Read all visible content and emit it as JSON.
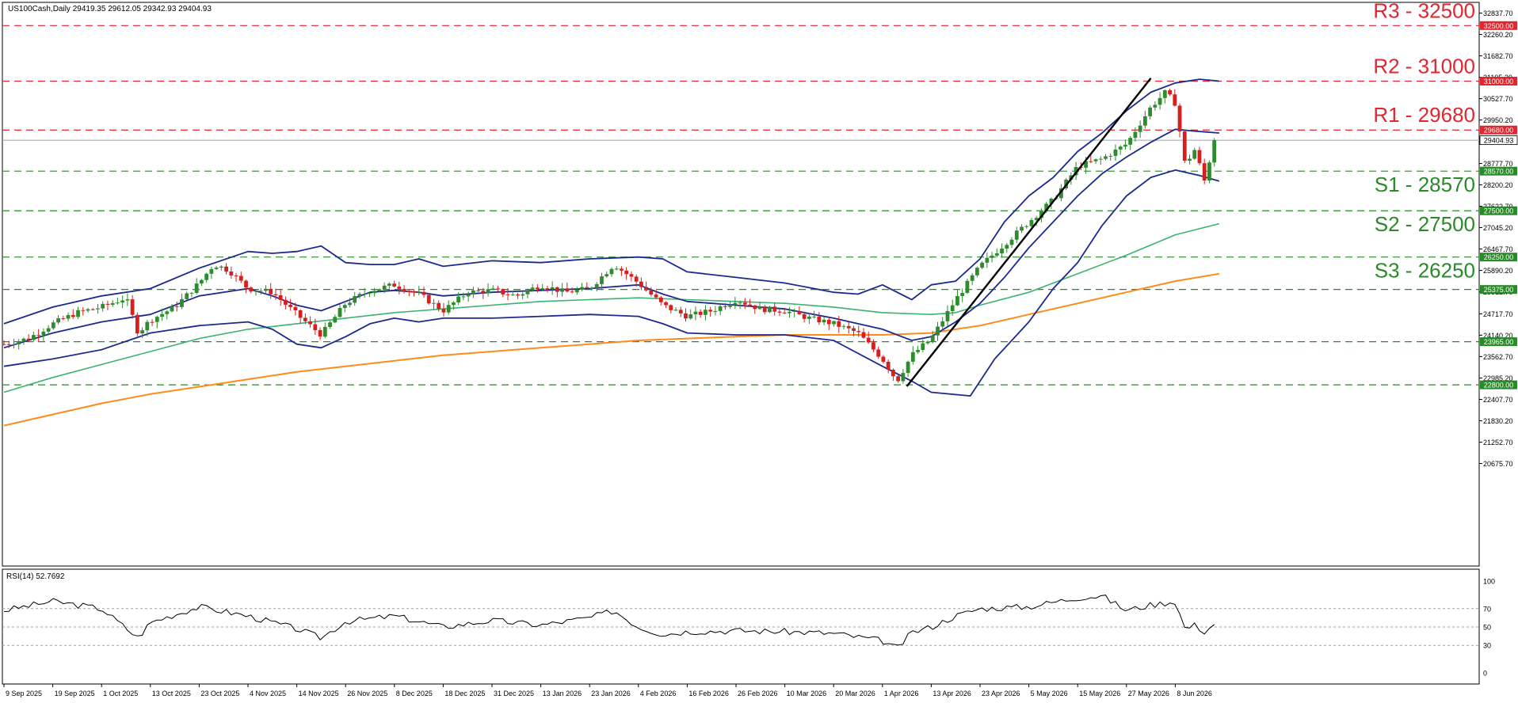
{
  "chart_data": {
    "type": "candlestick",
    "symbol_header": "US100Cash,Daily  29419.35 29612.05 29342.93 29404.93",
    "rsi_header": "RSI(14) 52.7692",
    "current_price": 29404.93,
    "current_price_label": "29404.93",
    "ylim": [
      20675.7,
      33000
    ],
    "y_ticks": [
      {
        "value": 32837.7,
        "label": "32837.70"
      },
      {
        "value": 32260.2,
        "label": "32260.20"
      },
      {
        "value": 31682.7,
        "label": "31682.70"
      },
      {
        "value": 31105.2,
        "label": "31105.20"
      },
      {
        "value": 30527.7,
        "label": "30527.70"
      },
      {
        "value": 29950.2,
        "label": "29950.20"
      },
      {
        "value": 29372.7,
        "label": "29372.70"
      },
      {
        "value": 28777.7,
        "label": "28777.70"
      },
      {
        "value": 28200.2,
        "label": "28200.20"
      },
      {
        "value": 27622.7,
        "label": "27622.70"
      },
      {
        "value": 27045.2,
        "label": "27045.20"
      },
      {
        "value": 26467.7,
        "label": "26467.70"
      },
      {
        "value": 25890.2,
        "label": "25890.20"
      },
      {
        "value": 25312.7,
        "label": "25312.70"
      },
      {
        "value": 24717.7,
        "label": "24717.70"
      },
      {
        "value": 24140.2,
        "label": "24140.20"
      },
      {
        "value": 23562.7,
        "label": "23562.70"
      },
      {
        "value": 22985.2,
        "label": "22985.20"
      },
      {
        "value": 22407.7,
        "label": "22407.70"
      },
      {
        "value": 21830.2,
        "label": "21830.20"
      },
      {
        "value": 21252.7,
        "label": "21252.70"
      },
      {
        "value": 20675.7,
        "label": "20675.70"
      }
    ],
    "x_labels": [
      "9 Sep 2025",
      "19 Sep 2025",
      "1 Oct 2025",
      "13 Oct 2025",
      "23 Oct 2025",
      "4 Nov 2025",
      "14 Nov 2025",
      "26 Nov 2025",
      "8 Dec 2025",
      "18 Dec 2025",
      "31 Dec 2025",
      "13 Jan 2026",
      "23 Jan 2026",
      "4 Feb 2026",
      "16 Feb 2026",
      "26 Feb 2026",
      "10 Mar 2026",
      "20 Mar 2026",
      "1 Apr 2026",
      "13 Apr 2026",
      "23 Apr 2026",
      "5 May 2026",
      "15 May 2026",
      "27 May 2026",
      "8 Jun 2026"
    ],
    "levels": [
      {
        "name": "R3",
        "value": 32500,
        "label": "R3 - 32500",
        "tag": "32500.00",
        "kind": "resistance"
      },
      {
        "name": "R2",
        "value": 31000,
        "label": "R2 - 31000",
        "tag": "31000.00",
        "kind": "resistance"
      },
      {
        "name": "R1",
        "value": 29680,
        "label": "R1 - 29680",
        "tag": "29680.00",
        "kind": "resistance"
      },
      {
        "name": "S1",
        "value": 28570,
        "label": "S1 - 28570",
        "tag": "28570.00",
        "kind": "support"
      },
      {
        "name": "S2",
        "value": 27500,
        "label": "S2 - 27500",
        "tag": "27500.00",
        "kind": "support"
      },
      {
        "name": "S3",
        "value": 26250,
        "label": "S3 - 26250",
        "tag": "26250.00",
        "kind": "support"
      },
      {
        "name": "",
        "value": 25375,
        "label": "",
        "tag": "25375.00",
        "kind": "support"
      },
      {
        "name": "",
        "value": 23965,
        "label": "",
        "tag": "23965.00",
        "kind": "support"
      },
      {
        "name": "",
        "value": 22800,
        "label": "",
        "tag": "22800.00",
        "kind": "support"
      }
    ],
    "rsi_ticks": [
      {
        "value": 100,
        "label": "100"
      },
      {
        "value": 70,
        "label": "70"
      },
      {
        "value": 50,
        "label": "50"
      },
      {
        "value": 30,
        "label": "30"
      },
      {
        "value": 0,
        "label": "0"
      }
    ],
    "rsi_levels": [
      70,
      50,
      30
    ],
    "trendline": {
      "start": [
        18.5,
        22760
      ],
      "end": [
        23.5,
        31080
      ]
    },
    "close_path": [
      [
        0,
        23900
      ],
      [
        0.5,
        24050
      ],
      [
        1,
        24450
      ],
      [
        1.5,
        24750
      ],
      [
        2,
        24900
      ],
      [
        2.5,
        25150
      ],
      [
        2.75,
        24200
      ],
      [
        3,
        24550
      ],
      [
        3.5,
        24900
      ],
      [
        4,
        25550
      ],
      [
        4.3,
        26050
      ],
      [
        4.6,
        25900
      ],
      [
        5,
        25400
      ],
      [
        5.5,
        25300
      ],
      [
        6,
        24700
      ],
      [
        6.5,
        24150
      ],
      [
        7,
        25000
      ],
      [
        7.5,
        25350
      ],
      [
        8,
        25500
      ],
      [
        8.5,
        25250
      ],
      [
        9,
        24800
      ],
      [
        9.5,
        25300
      ],
      [
        10,
        25350
      ],
      [
        10.5,
        25200
      ],
      [
        11,
        25500
      ],
      [
        11.5,
        25300
      ],
      [
        12,
        25400
      ],
      [
        12.5,
        26050
      ],
      [
        13,
        25550
      ],
      [
        13.5,
        24950
      ],
      [
        14,
        24650
      ],
      [
        14.5,
        24800
      ],
      [
        15,
        25100
      ],
      [
        15.5,
        24850
      ],
      [
        16,
        24800
      ],
      [
        16.5,
        24600
      ],
      [
        17,
        24450
      ],
      [
        17.5,
        24200
      ],
      [
        18,
        23500
      ],
      [
        18.3,
        22900
      ],
      [
        18.6,
        23600
      ],
      [
        19,
        24050
      ],
      [
        19.5,
        25100
      ],
      [
        20,
        26000
      ],
      [
        20.5,
        26600
      ],
      [
        21,
        27200
      ],
      [
        21.5,
        27800
      ],
      [
        22,
        28700
      ],
      [
        22.5,
        28900
      ],
      [
        23,
        29300
      ],
      [
        23.5,
        30300
      ],
      [
        23.8,
        30700
      ],
      [
        24,
        30400
      ],
      [
        24.2,
        28750
      ],
      [
        24.4,
        29150
      ],
      [
        24.6,
        28300
      ],
      [
        24.8,
        29404.93
      ]
    ],
    "bb_upper_path": [
      [
        0,
        24450
      ],
      [
        1,
        24900
      ],
      [
        2,
        25200
      ],
      [
        3,
        25400
      ],
      [
        4,
        25950
      ],
      [
        5,
        26400
      ],
      [
        5.5,
        26350
      ],
      [
        6,
        26400
      ],
      [
        6.5,
        26550
      ],
      [
        7,
        26100
      ],
      [
        7.5,
        26050
      ],
      [
        8,
        26050
      ],
      [
        8.5,
        26200
      ],
      [
        9,
        26000
      ],
      [
        10,
        26150
      ],
      [
        11,
        26100
      ],
      [
        12,
        26200
      ],
      [
        13,
        26250
      ],
      [
        13.5,
        26200
      ],
      [
        14,
        25850
      ],
      [
        15,
        25700
      ],
      [
        16,
        25550
      ],
      [
        17,
        25300
      ],
      [
        17.5,
        25250
      ],
      [
        18,
        25500
      ],
      [
        18.6,
        25100
      ],
      [
        19,
        25500
      ],
      [
        19.5,
        25600
      ],
      [
        20,
        26200
      ],
      [
        20.5,
        27200
      ],
      [
        21,
        27900
      ],
      [
        21.5,
        28400
      ],
      [
        22,
        29100
      ],
      [
        22.5,
        29600
      ],
      [
        23,
        30200
      ],
      [
        23.5,
        30700
      ],
      [
        24,
        30950
      ],
      [
        24.5,
        31050
      ],
      [
        24.9,
        31000
      ]
    ],
    "bb_middle_path": [
      [
        0,
        23800
      ],
      [
        1,
        24200
      ],
      [
        2,
        24500
      ],
      [
        3,
        24700
      ],
      [
        4,
        25200
      ],
      [
        5,
        25400
      ],
      [
        5.5,
        25200
      ],
      [
        6,
        24950
      ],
      [
        6.5,
        24800
      ],
      [
        7,
        25050
      ],
      [
        7.5,
        25300
      ],
      [
        8,
        25350
      ],
      [
        8.5,
        25300
      ],
      [
        9,
        25200
      ],
      [
        10,
        25300
      ],
      [
        11,
        25350
      ],
      [
        12,
        25400
      ],
      [
        13,
        25500
      ],
      [
        13.5,
        25250
      ],
      [
        14,
        25050
      ],
      [
        15,
        24950
      ],
      [
        16,
        24850
      ],
      [
        17,
        24600
      ],
      [
        18,
        24300
      ],
      [
        18.6,
        24000
      ],
      [
        19,
        24100
      ],
      [
        19.5,
        24500
      ],
      [
        20,
        25000
      ],
      [
        20.5,
        25700
      ],
      [
        21,
        26500
      ],
      [
        21.5,
        27200
      ],
      [
        22,
        27900
      ],
      [
        22.5,
        28500
      ],
      [
        23,
        28950
      ],
      [
        23.5,
        29350
      ],
      [
        24,
        29700
      ],
      [
        24.4,
        29650
      ],
      [
        24.9,
        29600
      ]
    ],
    "bb_lower_path": [
      [
        0,
        23300
      ],
      [
        1,
        23500
      ],
      [
        2,
        23750
      ],
      [
        3,
        24200
      ],
      [
        4,
        24400
      ],
      [
        5,
        24500
      ],
      [
        5.5,
        24300
      ],
      [
        6,
        23900
      ],
      [
        6.5,
        23800
      ],
      [
        7,
        24100
      ],
      [
        7.5,
        24450
      ],
      [
        8,
        24600
      ],
      [
        8.5,
        24500
      ],
      [
        9,
        24600
      ],
      [
        10,
        24600
      ],
      [
        11,
        24650
      ],
      [
        12,
        24700
      ],
      [
        13,
        24650
      ],
      [
        13.5,
        24450
      ],
      [
        14,
        24200
      ],
      [
        15,
        24150
      ],
      [
        16,
        24150
      ],
      [
        17,
        24000
      ],
      [
        18,
        23300
      ],
      [
        18.6,
        22900
      ],
      [
        19,
        22600
      ],
      [
        19.8,
        22500
      ],
      [
        20.3,
        23500
      ],
      [
        21,
        24500
      ],
      [
        21.5,
        25400
      ],
      [
        22,
        26100
      ],
      [
        22.5,
        27100
      ],
      [
        23,
        27900
      ],
      [
        23.5,
        28400
      ],
      [
        24,
        28600
      ],
      [
        24.5,
        28450
      ],
      [
        24.9,
        28300
      ]
    ],
    "ma_green_path": [
      [
        0,
        22600
      ],
      [
        1,
        23000
      ],
      [
        2,
        23350
      ],
      [
        3,
        23700
      ],
      [
        4,
        24050
      ],
      [
        5,
        24300
      ],
      [
        6,
        24450
      ],
      [
        7,
        24600
      ],
      [
        8,
        24750
      ],
      [
        9,
        24850
      ],
      [
        10,
        24950
      ],
      [
        11,
        25050
      ],
      [
        12,
        25100
      ],
      [
        13,
        25150
      ],
      [
        14,
        25100
      ],
      [
        15,
        25050
      ],
      [
        16,
        25000
      ],
      [
        17,
        24900
      ],
      [
        18,
        24750
      ],
      [
        19,
        24700
      ],
      [
        19.5,
        24750
      ],
      [
        20,
        24950
      ],
      [
        21,
        25300
      ],
      [
        22,
        25800
      ],
      [
        23,
        26300
      ],
      [
        24,
        26850
      ],
      [
        24.9,
        27150
      ]
    ],
    "ma_orange_path": [
      [
        0,
        21700
      ],
      [
        1,
        22000
      ],
      [
        2,
        22300
      ],
      [
        3,
        22550
      ],
      [
        4,
        22750
      ],
      [
        5,
        22950
      ],
      [
        6,
        23150
      ],
      [
        7,
        23300
      ],
      [
        8,
        23450
      ],
      [
        9,
        23600
      ],
      [
        10,
        23700
      ],
      [
        11,
        23800
      ],
      [
        12,
        23900
      ],
      [
        13,
        24000
      ],
      [
        14,
        24050
      ],
      [
        15,
        24100
      ],
      [
        16,
        24150
      ],
      [
        17,
        24150
      ],
      [
        18,
        24150
      ],
      [
        19,
        24200
      ],
      [
        20,
        24400
      ],
      [
        21,
        24700
      ],
      [
        22,
        25000
      ],
      [
        23,
        25300
      ],
      [
        24,
        25600
      ],
      [
        24.9,
        25800
      ]
    ],
    "rsi_path": [
      [
        0,
        68
      ],
      [
        1,
        78
      ],
      [
        2,
        70
      ],
      [
        2.75,
        38
      ],
      [
        3,
        55
      ],
      [
        4,
        72
      ],
      [
        5,
        62
      ],
      [
        6,
        48
      ],
      [
        6.5,
        38
      ],
      [
        7,
        56
      ],
      [
        8,
        62
      ],
      [
        9,
        50
      ],
      [
        10,
        57
      ],
      [
        11,
        52
      ],
      [
        12,
        60
      ],
      [
        12.5,
        68
      ],
      [
        13,
        50
      ],
      [
        13.5,
        42
      ],
      [
        14,
        45
      ],
      [
        15,
        46
      ],
      [
        16,
        45
      ],
      [
        17,
        43
      ],
      [
        18,
        35
      ],
      [
        18.3,
        26
      ],
      [
        18.6,
        44
      ],
      [
        19,
        50
      ],
      [
        19.5,
        62
      ],
      [
        20,
        70
      ],
      [
        21,
        72
      ],
      [
        22,
        82
      ],
      [
        22.5,
        84
      ],
      [
        23,
        68
      ],
      [
        23.5,
        74
      ],
      [
        24,
        78
      ],
      [
        24.2,
        48
      ],
      [
        24.4,
        52
      ],
      [
        24.6,
        45
      ],
      [
        24.8,
        52.77
      ]
    ]
  }
}
